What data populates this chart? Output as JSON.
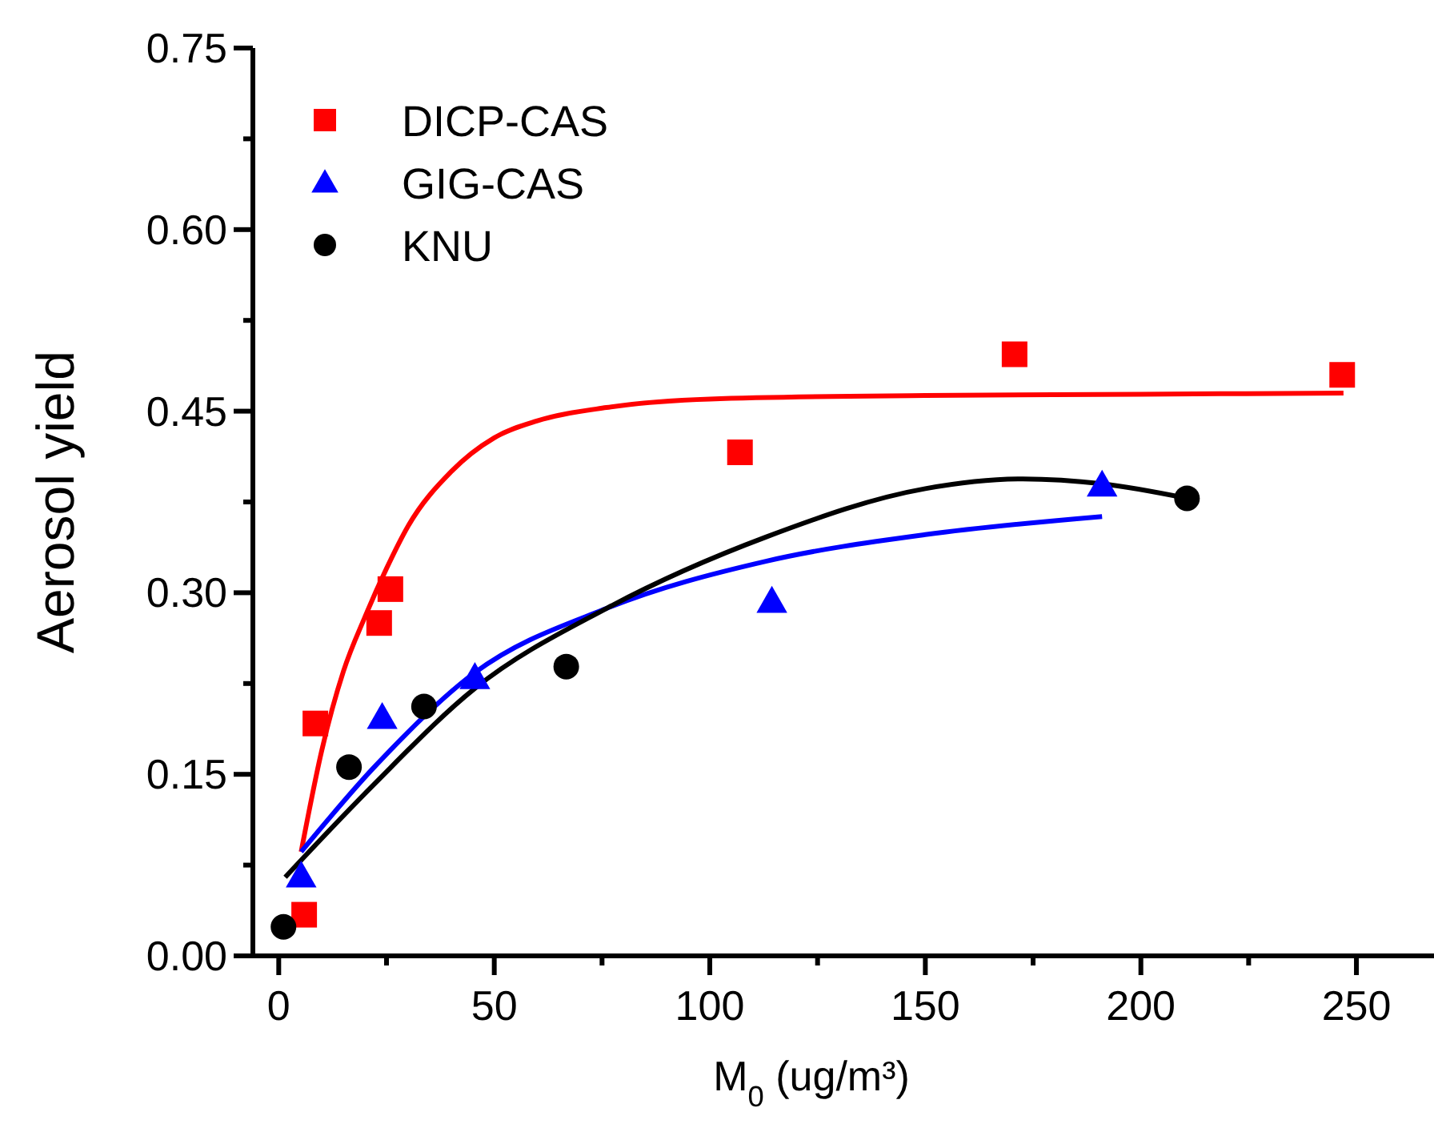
{
  "chart_data": {
    "type": "scatter",
    "xlabel": "M$_{0}$ (ug/m³)",
    "ylabel": "Aerosol yield",
    "xlim": [
      -6,
      268
    ],
    "ylim": [
      0,
      0.75
    ],
    "xticks": [
      0,
      {
        "value": 25,
        "label": null
      },
      50,
      {
        "value": 75,
        "label": null
      },
      100,
      {
        "value": 125,
        "label": null
      },
      150,
      {
        "value": 175,
        "label": null
      },
      200,
      {
        "value": 225,
        "label": null
      },
      250
    ],
    "yticks": [
      {
        "value": 0,
        "label": "0.00"
      },
      {
        "value": 0.075,
        "label": null
      },
      {
        "value": 0.15,
        "label": "0.15"
      },
      {
        "value": 0.225,
        "label": null
      },
      {
        "value": 0.3,
        "label": "0.30"
      },
      {
        "value": 0.375,
        "label": null
      },
      {
        "value": 0.45,
        "label": "0.45"
      },
      {
        "value": 0.525,
        "label": null
      },
      {
        "value": 0.6,
        "label": "0.60"
      },
      {
        "value": 0.675,
        "label": null
      },
      {
        "value": 0.75,
        "label": "0.75"
      }
    ],
    "grid": false,
    "legend": "top left",
    "series": [
      {
        "name": "DICP-CAS",
        "color": "#ff0000",
        "marker": "square",
        "x": [
          5.9,
          8.5,
          23.3,
          25.9,
          107,
          170.7,
          246.7
        ],
        "values": [
          0.034,
          0.192,
          0.275,
          0.303,
          0.416,
          0.497,
          0.48
        ]
      },
      {
        "name": "GIG-CAS",
        "color": "#0000ff",
        "marker": "triangle",
        "x": [
          5.2,
          24,
          45.5,
          114.4,
          191
        ],
        "values": [
          0.066,
          0.197,
          0.23,
          0.293,
          0.389
        ]
      },
      {
        "name": "KNU",
        "color": "#000000",
        "marker": "circle",
        "x": [
          1.1,
          16.3,
          33.7,
          66.7,
          210.7
        ],
        "values": [
          0.024,
          0.156,
          0.206,
          0.239,
          0.378
        ]
      },
      {
        "type": "line",
        "color": "#ff0000",
        "x": [
          5.2,
          10,
          15,
          20,
          25,
          30,
          40,
          50,
          60,
          76,
          100,
          150,
          200,
          247
        ],
        "values": [
          0.086,
          0.17,
          0.235,
          0.28,
          0.32,
          0.355,
          0.4,
          0.428,
          0.442,
          0.453,
          0.46,
          0.463,
          0.464,
          0.465
        ]
      },
      {
        "type": "line",
        "color": "#0000ff",
        "x": [
          5.2,
          21.9,
          45.5,
          76,
          113,
          150,
          191
        ],
        "values": [
          0.086,
          0.155,
          0.234,
          0.287,
          0.326,
          0.348,
          0.363
        ]
      },
      {
        "type": "line",
        "color": "#000000",
        "x": [
          1.5,
          21.9,
          45.5,
          76,
          113,
          150,
          172.6,
          191,
          210.7
        ],
        "values": [
          0.065,
          0.141,
          0.221,
          0.287,
          0.346,
          0.386,
          0.394,
          0.39,
          0.378
        ]
      }
    ]
  }
}
